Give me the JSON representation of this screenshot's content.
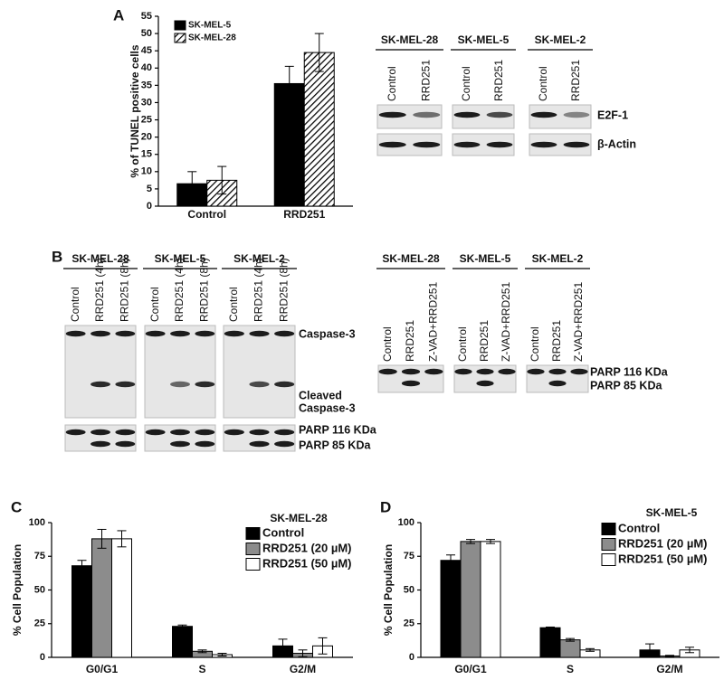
{
  "figure": {
    "panels": [
      "A",
      "B",
      "C",
      "D"
    ],
    "blots": [
      {
        "groups": [
          {
            "name": "SK-MEL-28",
            "lanes": [
              "Control",
              "RRD251"
            ]
          },
          {
            "name": "SK-MEL-5",
            "lanes": [
              "Control",
              "RRD251"
            ]
          },
          {
            "name": "SK-MEL-2",
            "lanes": [
              "Control",
              "RRD251"
            ]
          }
        ],
        "labels": [
          "E2F-1",
          "β-Actin"
        ]
      },
      {
        "groups": [
          {
            "name": "SK-MEL-28",
            "lanes": [
              "Control",
              "RRD251 (4h)",
              "RRD251 (8h)"
            ]
          },
          {
            "name": "SK-MEL-5",
            "lanes": [
              "Control",
              "RRD251 (4h)",
              "RRD251 (8h)"
            ]
          },
          {
            "name": "SK-MEL-2",
            "lanes": [
              "Control",
              "RRD251 (4h)",
              "RRD251 (8h)"
            ]
          }
        ],
        "labels": [
          "Caspase-3",
          "Cleaved",
          "Caspase-3",
          "PARP 116 KDa",
          "PARP 85 KDa"
        ]
      },
      {
        "groups": [
          {
            "name": "SK-MEL-28",
            "lanes": [
              "Control",
              "RRD251",
              "Z-VAD+RRD251"
            ]
          },
          {
            "name": "SK-MEL-5",
            "lanes": [
              "Control",
              "RRD251",
              "Z-VAD+RRD251"
            ]
          },
          {
            "name": "SK-MEL-2",
            "lanes": [
              "Control",
              "RRD251",
              "Z-VAD+RRD251"
            ]
          }
        ],
        "labels": [
          "PARP 116 KDa",
          "PARP 85 KDa"
        ]
      }
    ]
  },
  "chart_data": [
    {
      "type": "bar",
      "y_label": "% of TUNEL positive cells",
      "legend": "upper left",
      "categories": [
        "Control",
        "RRD251"
      ],
      "series": [
        {
          "name": "SK-MEL-5",
          "color": "#000000",
          "values": [
            6.5,
            35.5
          ],
          "errors": [
            3.5,
            5
          ]
        },
        {
          "name": "SK-MEL-28",
          "color": "hatch",
          "values": [
            7.5,
            44.5
          ],
          "errors": [
            4,
            5.5
          ]
        }
      ],
      "ylim": [
        0,
        55
      ],
      "yticks": [
        0,
        5,
        10,
        15,
        20,
        25,
        30,
        35,
        40,
        45,
        50,
        55
      ]
    },
    {
      "type": "bar",
      "subtitle": "SK-MEL-28",
      "y_label": "% Cell Population",
      "legend": "upper right",
      "categories": [
        "G0/G1",
        "S",
        "G2/M"
      ],
      "series": [
        {
          "name": "Control",
          "color": "#000000",
          "values": [
            68,
            23,
            8.5
          ],
          "errors": [
            4,
            1,
            5
          ]
        },
        {
          "name": "RRD251 (20 µM)",
          "color": "#8c8c8c",
          "values": [
            88,
            4.5,
            3
          ],
          "errors": [
            7,
            1,
            2.5
          ]
        },
        {
          "name": "RRD251 (50 µM)",
          "color": "#ffffff",
          "values": [
            88,
            2,
            8.5
          ],
          "errors": [
            6,
            1,
            6
          ]
        }
      ],
      "ylim": [
        0,
        100
      ],
      "yticks": [
        0,
        25,
        50,
        75,
        100
      ]
    },
    {
      "type": "bar",
      "subtitle": "SK-MEL-5",
      "y_label": "% Cell Population",
      "legend": "upper right",
      "categories": [
        "G0/G1",
        "S",
        "G2/M"
      ],
      "series": [
        {
          "name": "Control",
          "color": "#000000",
          "values": [
            72,
            22,
            5.5
          ],
          "errors": [
            4,
            0.5,
            4.5
          ]
        },
        {
          "name": "RRD251 (20 µM)",
          "color": "#8c8c8c",
          "values": [
            86,
            13,
            1
          ],
          "errors": [
            1.5,
            1,
            0.5
          ]
        },
        {
          "name": "RRD251 (50 µM)",
          "color": "#ffffff",
          "values": [
            86,
            5.5,
            5.5
          ],
          "errors": [
            1.5,
            1,
            2
          ]
        }
      ],
      "ylim": [
        0,
        100
      ],
      "yticks": [
        0,
        25,
        50,
        75,
        100
      ]
    }
  ]
}
